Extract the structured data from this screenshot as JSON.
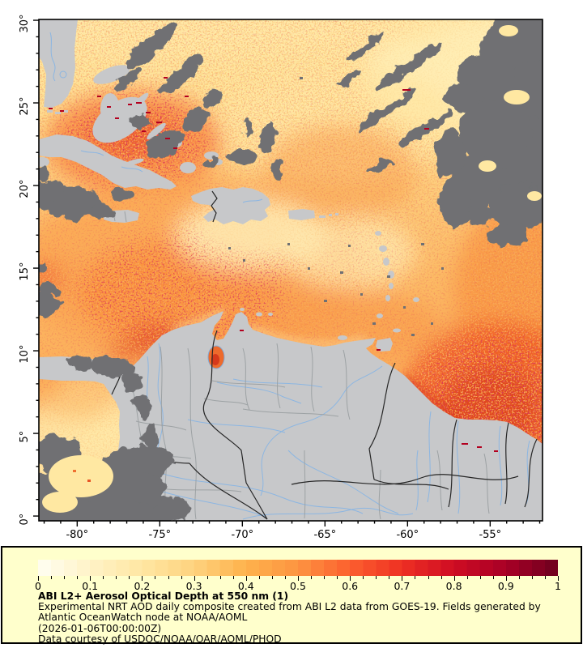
{
  "figure": {
    "map": {
      "x_axis": {
        "range": [
          -82.32,
          -51.83
        ],
        "minor_tick_interval_deg": 1,
        "ticks": [
          {
            "value": -80,
            "label": "-80°"
          },
          {
            "value": -75,
            "label": "-75°"
          },
          {
            "value": -70,
            "label": "-70°"
          },
          {
            "value": -65,
            "label": "-65°"
          },
          {
            "value": -60,
            "label": "-60°"
          },
          {
            "value": -55,
            "label": "-55°"
          }
        ]
      },
      "y_axis": {
        "range": [
          -0.29,
          30.05
        ],
        "minor_tick_interval_deg": 1,
        "ticks": [
          {
            "value": 30,
            "label": "30°"
          },
          {
            "value": 25,
            "label": "25°"
          },
          {
            "value": 20,
            "label": "20°"
          },
          {
            "value": 15,
            "label": "15°"
          },
          {
            "value": 10,
            "label": "10°"
          },
          {
            "value": 5,
            "label": "5°"
          },
          {
            "value": 0,
            "label": "0°"
          }
        ]
      },
      "colors": {
        "land": "#c7c8ca",
        "missing_data": "#6f7073",
        "river": "#8cb6e2",
        "admin_border": "#9ba0a2",
        "country_border": "#262626",
        "ocean_low_aod": "#ffe9a6",
        "ocean_high_aod": "#e03a1c"
      }
    },
    "legend": {
      "background": "#ffffcc",
      "colorbar": {
        "min": 0,
        "max": 1,
        "steps": 40,
        "minor_tick_step": 0.025,
        "ticks": [
          "0",
          "0.1",
          "0.2",
          "0.3",
          "0.4",
          "0.5",
          "0.6",
          "0.7",
          "0.8",
          "0.9",
          "1"
        ],
        "stops": [
          {
            "at": 0.0,
            "color": "#fffff2"
          },
          {
            "at": 0.1,
            "color": "#fff2c6"
          },
          {
            "at": 0.2,
            "color": "#ffe7a2"
          },
          {
            "at": 0.3,
            "color": "#fed27e"
          },
          {
            "at": 0.4,
            "color": "#feb24c"
          },
          {
            "at": 0.5,
            "color": "#fd9441"
          },
          {
            "at": 0.6,
            "color": "#fc5f2e"
          },
          {
            "at": 0.7,
            "color": "#ee3023"
          },
          {
            "at": 0.8,
            "color": "#cf0c23"
          },
          {
            "at": 0.9,
            "color": "#a80026"
          },
          {
            "at": 1.0,
            "color": "#6e001e"
          }
        ]
      },
      "title": "ABI L2+ Aerosol Optical Depth at 550 nm (1)",
      "description": "Experimental NRT AOD daily composite created from ABI L2 data from GOES-19. Fields generated by Atlantic OceanWatch node at NOAA/AOML",
      "timestamp": "(2026-01-06T00:00:00Z)",
      "courtesy": "Data courtesy of USDOC/NOAA/OAR/AOML/PHOD"
    }
  }
}
